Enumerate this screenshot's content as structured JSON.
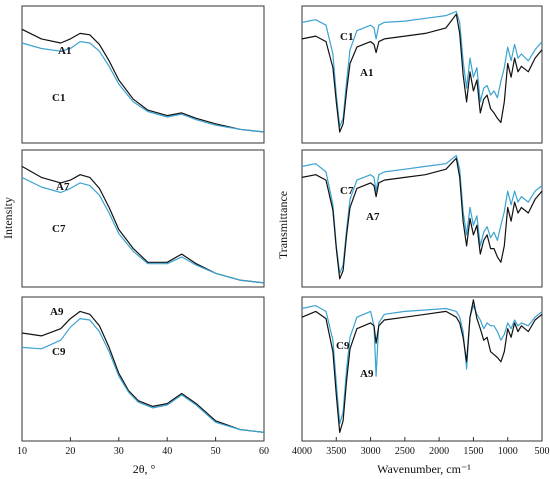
{
  "colors": {
    "black": "#111111",
    "blue": "#3ba3d1",
    "frame": "#333333"
  },
  "chart_data": [
    {
      "type": "line",
      "panel": "xrd-top",
      "ylabel": "Intensity",
      "xlim": [
        10,
        60
      ],
      "ylim": [
        0,
        100
      ],
      "x_ticks": [],
      "labels": [
        "A1",
        "C1"
      ],
      "series": [
        {
          "name": "A1",
          "color": "black",
          "x": [
            10,
            14,
            18,
            20,
            22,
            24,
            26,
            28,
            30,
            33,
            36,
            40,
            43,
            46,
            50,
            55,
            60
          ],
          "y": [
            83,
            76,
            73,
            76,
            80,
            79,
            72,
            60,
            46,
            32,
            24,
            20,
            22,
            18,
            14,
            10,
            8
          ]
        },
        {
          "name": "C1",
          "color": "blue",
          "x": [
            10,
            14,
            18,
            20,
            22,
            24,
            26,
            28,
            30,
            33,
            36,
            40,
            43,
            46,
            50,
            55,
            60
          ],
          "y": [
            73,
            69,
            67,
            69,
            74,
            73,
            67,
            56,
            43,
            30,
            23,
            19,
            21,
            17,
            13,
            10,
            8
          ]
        }
      ]
    },
    {
      "type": "line",
      "panel": "xrd-middle",
      "xlim": [
        10,
        60
      ],
      "ylim": [
        0,
        100
      ],
      "x_ticks": [],
      "labels": [
        "A7",
        "C7"
      ],
      "series": [
        {
          "name": "A7",
          "color": "black",
          "x": [
            10,
            14,
            18,
            20,
            22,
            24,
            26,
            28,
            30,
            33,
            36,
            40,
            43,
            46,
            50,
            55,
            60
          ],
          "y": [
            88,
            80,
            76,
            78,
            82,
            80,
            72,
            58,
            42,
            28,
            18,
            18,
            24,
            17,
            10,
            5,
            3
          ]
        },
        {
          "name": "C7",
          "color": "blue",
          "x": [
            10,
            14,
            18,
            20,
            22,
            24,
            26,
            28,
            30,
            33,
            36,
            40,
            43,
            46,
            50,
            55,
            60
          ],
          "y": [
            80,
            73,
            69,
            72,
            76,
            74,
            67,
            54,
            39,
            26,
            17,
            17,
            22,
            16,
            10,
            5,
            3
          ]
        }
      ]
    },
    {
      "type": "line",
      "panel": "xrd-bottom",
      "xlabel": "2θ, °",
      "xlim": [
        10,
        60
      ],
      "ylim": [
        0,
        100
      ],
      "x_ticks": [
        10,
        20,
        30,
        40,
        50,
        60
      ],
      "labels": [
        "A9",
        "C9"
      ],
      "series": [
        {
          "name": "A9",
          "color": "black",
          "x": [
            10,
            14,
            18,
            20,
            22,
            24,
            26,
            28,
            30,
            32,
            34,
            37,
            40,
            43,
            46,
            50,
            55,
            60
          ],
          "y": [
            75,
            73,
            78,
            85,
            90,
            88,
            80,
            65,
            47,
            35,
            28,
            24,
            26,
            33,
            26,
            14,
            8,
            6
          ]
        },
        {
          "name": "C9",
          "color": "blue",
          "x": [
            10,
            14,
            18,
            20,
            22,
            24,
            26,
            28,
            30,
            32,
            34,
            37,
            40,
            43,
            46,
            50,
            55,
            60
          ],
          "y": [
            65,
            64,
            70,
            79,
            85,
            84,
            76,
            62,
            45,
            34,
            27,
            23,
            25,
            32,
            25,
            13,
            8,
            6
          ]
        }
      ]
    },
    {
      "type": "line",
      "panel": "ftir-top",
      "ylabel": "Transmittance",
      "xlim": [
        4000,
        500
      ],
      "ylim": [
        0,
        100
      ],
      "x_ticks": [],
      "labels": [
        "C1",
        "A1"
      ],
      "series": [
        {
          "name": "C1",
          "color": "blue",
          "x": [
            4000,
            3800,
            3650,
            3550,
            3500,
            3450,
            3400,
            3350,
            3300,
            3200,
            3000,
            2950,
            2920,
            2880,
            2800,
            2500,
            2200,
            1900,
            1750,
            1700,
            1650,
            1600,
            1550,
            1500,
            1450,
            1400,
            1350,
            1300,
            1250,
            1200,
            1150,
            1100,
            1050,
            1000,
            950,
            900,
            850,
            800,
            700,
            600,
            500
          ],
          "y": [
            88,
            90,
            86,
            65,
            35,
            12,
            18,
            45,
            68,
            82,
            86,
            84,
            76,
            86,
            88,
            89,
            91,
            93,
            96,
            88,
            60,
            40,
            62,
            48,
            55,
            30,
            40,
            42,
            35,
            38,
            33,
            45,
            55,
            70,
            60,
            72,
            62,
            65,
            60,
            68,
            74
          ]
        },
        {
          "name": "A1",
          "color": "black",
          "x": [
            4000,
            3800,
            3650,
            3550,
            3500,
            3450,
            3400,
            3350,
            3300,
            3200,
            3000,
            2950,
            2920,
            2880,
            2800,
            2500,
            2200,
            1900,
            1750,
            1700,
            1650,
            1600,
            1550,
            1500,
            1450,
            1400,
            1350,
            1300,
            1250,
            1200,
            1150,
            1100,
            1050,
            1000,
            950,
            900,
            850,
            800,
            700,
            600,
            500
          ],
          "y": [
            76,
            78,
            74,
            55,
            30,
            8,
            14,
            38,
            58,
            70,
            74,
            72,
            66,
            74,
            76,
            78,
            80,
            84,
            94,
            80,
            50,
            30,
            52,
            38,
            46,
            22,
            32,
            35,
            25,
            22,
            18,
            15,
            30,
            58,
            48,
            62,
            52,
            56,
            52,
            62,
            68
          ]
        }
      ]
    },
    {
      "type": "line",
      "panel": "ftir-middle",
      "xlim": [
        4000,
        500
      ],
      "ylim": [
        0,
        100
      ],
      "x_ticks": [],
      "labels": [
        "C7",
        "A7"
      ],
      "series": [
        {
          "name": "C7",
          "color": "blue",
          "x": [
            4000,
            3800,
            3650,
            3550,
            3500,
            3450,
            3400,
            3350,
            3300,
            3200,
            3000,
            2950,
            2920,
            2880,
            2800,
            2500,
            2200,
            1900,
            1750,
            1700,
            1650,
            1600,
            1550,
            1500,
            1450,
            1400,
            1350,
            1300,
            1250,
            1200,
            1150,
            1100,
            1050,
            1000,
            950,
            900,
            850,
            800,
            700,
            600,
            500
          ],
          "y": [
            88,
            90,
            84,
            60,
            30,
            10,
            16,
            42,
            64,
            78,
            82,
            80,
            70,
            82,
            84,
            86,
            88,
            90,
            96,
            86,
            55,
            38,
            58,
            45,
            52,
            30,
            40,
            44,
            36,
            40,
            34,
            45,
            55,
            70,
            60,
            70,
            62,
            66,
            62,
            70,
            74
          ]
        },
        {
          "name": "A7",
          "color": "black",
          "x": [
            4000,
            3800,
            3650,
            3550,
            3500,
            3450,
            3400,
            3350,
            3300,
            3200,
            3000,
            2950,
            2920,
            2880,
            2800,
            2500,
            2200,
            1900,
            1750,
            1700,
            1650,
            1600,
            1550,
            1500,
            1450,
            1400,
            1350,
            1300,
            1250,
            1200,
            1150,
            1100,
            1050,
            1000,
            950,
            900,
            850,
            800,
            700,
            600,
            500
          ],
          "y": [
            80,
            82,
            78,
            56,
            28,
            6,
            12,
            38,
            58,
            72,
            76,
            74,
            66,
            76,
            78,
            80,
            82,
            86,
            94,
            80,
            48,
            30,
            50,
            38,
            45,
            24,
            34,
            38,
            28,
            28,
            22,
            18,
            30,
            58,
            48,
            62,
            54,
            58,
            54,
            64,
            70
          ]
        }
      ]
    },
    {
      "type": "line",
      "panel": "ftir-bottom",
      "xlabel": "Wavenumber, cm⁻¹",
      "xlim": [
        4000,
        500
      ],
      "ylim": [
        0,
        100
      ],
      "x_ticks": [
        4000,
        3500,
        3000,
        2500,
        2000,
        1500,
        1000,
        500
      ],
      "labels": [
        "C9",
        "A9"
      ],
      "series": [
        {
          "name": "C9",
          "color": "blue",
          "x": [
            4000,
            3800,
            3650,
            3550,
            3500,
            3450,
            3400,
            3350,
            3300,
            3200,
            3000,
            2950,
            2920,
            2880,
            2800,
            2500,
            2200,
            1900,
            1750,
            1700,
            1650,
            1600,
            1550,
            1500,
            1450,
            1400,
            1350,
            1300,
            1250,
            1200,
            1150,
            1100,
            1050,
            1000,
            950,
            900,
            850,
            800,
            700,
            600,
            500
          ],
          "y": [
            92,
            94,
            90,
            70,
            40,
            12,
            20,
            50,
            72,
            86,
            90,
            80,
            45,
            82,
            88,
            90,
            91,
            92,
            90,
            86,
            76,
            50,
            86,
            94,
            88,
            84,
            78,
            82,
            80,
            80,
            76,
            70,
            74,
            82,
            78,
            84,
            80,
            82,
            80,
            86,
            90
          ]
        },
        {
          "name": "A9",
          "color": "black",
          "x": [
            4000,
            3800,
            3650,
            3550,
            3500,
            3450,
            3400,
            3350,
            3300,
            3200,
            3000,
            2950,
            2920,
            2880,
            2800,
            2500,
            2200,
            1900,
            1750,
            1700,
            1650,
            1600,
            1550,
            1500,
            1450,
            1400,
            1350,
            1300,
            1250,
            1200,
            1150,
            1100,
            1050,
            1000,
            950,
            900,
            850,
            800,
            700,
            600,
            500
          ],
          "y": [
            86,
            90,
            85,
            62,
            32,
            6,
            14,
            42,
            64,
            78,
            82,
            80,
            68,
            80,
            84,
            86,
            88,
            90,
            86,
            82,
            72,
            55,
            86,
            98,
            85,
            78,
            70,
            72,
            62,
            60,
            58,
            55,
            62,
            78,
            72,
            82,
            76,
            80,
            76,
            84,
            88
          ]
        }
      ]
    }
  ]
}
